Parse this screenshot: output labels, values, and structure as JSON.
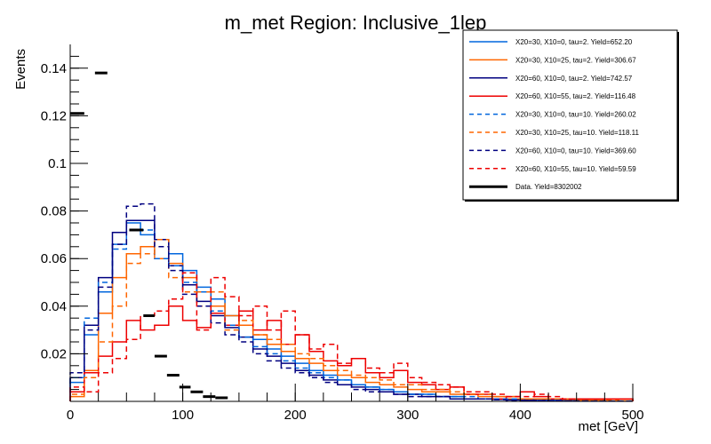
{
  "chart_data": {
    "type": "line",
    "subtype": "step-histogram",
    "title": "m_met Region: Inclusive_1lep",
    "xlabel": "met [GeV]",
    "ylabel": "Events",
    "xlim": [
      0,
      500
    ],
    "ylim": [
      0,
      0.15
    ],
    "bin_width": 12.5,
    "x_ticks": [
      0,
      100,
      200,
      300,
      400,
      500
    ],
    "x_tick_labels": [
      "0",
      "100",
      "200",
      "300",
      "400",
      "500"
    ],
    "y_ticks": [
      0.02,
      0.04,
      0.06,
      0.08,
      0.1,
      0.12,
      0.14
    ],
    "y_tick_labels": [
      "0.02",
      "0.04",
      "0.06",
      "0.08",
      "0.1",
      "0.12",
      "0.14"
    ],
    "grid": false,
    "legend_position": "top-right",
    "series": [
      {
        "name": "X20=30, X10=0, tau=2. Yield=652.20",
        "color": "#0066dd",
        "dash": false,
        "values": [
          0.008,
          0.028,
          0.046,
          0.066,
          0.075,
          0.07,
          0.068,
          0.062,
          0.055,
          0.048,
          0.043,
          0.036,
          0.032,
          0.026,
          0.022,
          0.019,
          0.016,
          0.013,
          0.011,
          0.009,
          0.007,
          0.006,
          0.005,
          0.004,
          0.003,
          0.003,
          0.002,
          0.002,
          0.001,
          0.001,
          0.001,
          0.001,
          0.0005,
          0.0005,
          0.0005,
          0.0003,
          0.0003,
          0.0002,
          0.0002,
          0.0002
        ]
      },
      {
        "name": "X20=30, X10=25, tau=2. Yield=306.67",
        "color": "#ff6600",
        "dash": false,
        "values": [
          0.002,
          0.013,
          0.037,
          0.052,
          0.062,
          0.065,
          0.06,
          0.058,
          0.052,
          0.046,
          0.04,
          0.036,
          0.032,
          0.028,
          0.024,
          0.021,
          0.018,
          0.016,
          0.013,
          0.011,
          0.01,
          0.008,
          0.007,
          0.006,
          0.005,
          0.004,
          0.004,
          0.003,
          0.003,
          0.002,
          0.002,
          0.001,
          0.001,
          0.001,
          0.001,
          0.0005,
          0.0005,
          0.0005,
          0.0003,
          0.0003
        ]
      },
      {
        "name": "X20=60, X10=0, tau=2. Yield=742.57",
        "color": "#000080",
        "dash": false,
        "values": [
          0.01,
          0.032,
          0.052,
          0.071,
          0.076,
          0.076,
          0.068,
          0.057,
          0.049,
          0.042,
          0.036,
          0.031,
          0.027,
          0.022,
          0.019,
          0.016,
          0.013,
          0.011,
          0.009,
          0.007,
          0.006,
          0.005,
          0.004,
          0.003,
          0.003,
          0.002,
          0.002,
          0.001,
          0.001,
          0.001,
          0.0008,
          0.0006,
          0.0005,
          0.0004,
          0.0003,
          0.0003,
          0.0002,
          0.0002,
          0.0001,
          0.0001
        ]
      },
      {
        "name": "X20=60, X10=55, tau=2. Yield=116.48",
        "color": "#ee0000",
        "dash": false,
        "values": [
          0.004,
          0.012,
          0.019,
          0.025,
          0.034,
          0.03,
          0.032,
          0.04,
          0.034,
          0.031,
          0.037,
          0.032,
          0.038,
          0.03,
          0.034,
          0.024,
          0.028,
          0.021,
          0.017,
          0.015,
          0.018,
          0.012,
          0.01,
          0.013,
          0.008,
          0.007,
          0.005,
          0.006,
          0.003,
          0.003,
          0.001,
          0.002,
          0.004,
          0.002,
          0.001,
          0.001,
          0.001,
          0.001,
          0.001,
          0.001
        ]
      },
      {
        "name": "X20=30, X10=0, tau=10. Yield=260.02",
        "color": "#0066dd",
        "dash": true,
        "values": [
          0.01,
          0.035,
          0.05,
          0.064,
          0.072,
          0.072,
          0.06,
          0.057,
          0.05,
          0.046,
          0.038,
          0.032,
          0.027,
          0.023,
          0.02,
          0.017,
          0.014,
          0.012,
          0.01,
          0.009,
          0.007,
          0.006,
          0.005,
          0.004,
          0.003,
          0.003,
          0.002,
          0.002,
          0.002,
          0.001,
          0.001,
          0.001,
          0.0007,
          0.0005,
          0.0004,
          0.0003,
          0.0003,
          0.0002,
          0.0002,
          0.0002
        ]
      },
      {
        "name": "X20=30, X10=25, tau=10. Yield=118.11",
        "color": "#ff6600",
        "dash": true,
        "values": [
          0.003,
          0.01,
          0.025,
          0.04,
          0.058,
          0.062,
          0.068,
          0.052,
          0.046,
          0.04,
          0.046,
          0.03,
          0.034,
          0.028,
          0.026,
          0.024,
          0.02,
          0.018,
          0.015,
          0.013,
          0.011,
          0.01,
          0.009,
          0.007,
          0.007,
          0.005,
          0.005,
          0.004,
          0.003,
          0.003,
          0.002,
          0.002,
          0.001,
          0.001,
          0.001,
          0.001,
          0.0005,
          0.0005,
          0.0005,
          0.0003
        ]
      },
      {
        "name": "X20=60, X10=0, tau=10. Yield=369.60",
        "color": "#000080",
        "dash": true,
        "values": [
          0.012,
          0.03,
          0.048,
          0.066,
          0.082,
          0.083,
          0.065,
          0.055,
          0.045,
          0.04,
          0.033,
          0.028,
          0.025,
          0.02,
          0.017,
          0.014,
          0.012,
          0.01,
          0.008,
          0.007,
          0.005,
          0.004,
          0.004,
          0.003,
          0.002,
          0.002,
          0.002,
          0.001,
          0.001,
          0.001,
          0.0007,
          0.0005,
          0.0004,
          0.0003,
          0.0003,
          0.0002,
          0.0002,
          0.0001,
          0.0001,
          0.0001
        ]
      },
      {
        "name": "X20=60, X10=55, tau=10. Yield=59.59",
        "color": "#ee0000",
        "dash": true,
        "values": [
          0.006,
          0.004,
          0.012,
          0.018,
          0.026,
          0.036,
          0.038,
          0.043,
          0.054,
          0.03,
          0.052,
          0.044,
          0.036,
          0.04,
          0.03,
          0.038,
          0.028,
          0.022,
          0.024,
          0.016,
          0.018,
          0.014,
          0.012,
          0.016,
          0.01,
          0.008,
          0.007,
          0.006,
          0.004,
          0.004,
          0.003,
          0.002,
          0.002,
          0.003,
          0.002,
          0.001,
          0.001,
          0.001,
          0.001,
          0.001
        ]
      }
    ],
    "data_points": {
      "name": "Data. Yield=8302002",
      "color": "#000000",
      "x_bins": [
        [
          0,
          12.5
        ],
        [
          22,
          33
        ],
        [
          52.5,
          65
        ],
        [
          65,
          75
        ],
        [
          75,
          86
        ],
        [
          86,
          97
        ],
        [
          97,
          107
        ],
        [
          107,
          118
        ],
        [
          118,
          129
        ],
        [
          129,
          140
        ]
      ],
      "values": [
        0.121,
        0.138,
        0.072,
        0.036,
        0.019,
        0.011,
        0.006,
        0.004,
        0.002,
        0.0015
      ]
    }
  }
}
